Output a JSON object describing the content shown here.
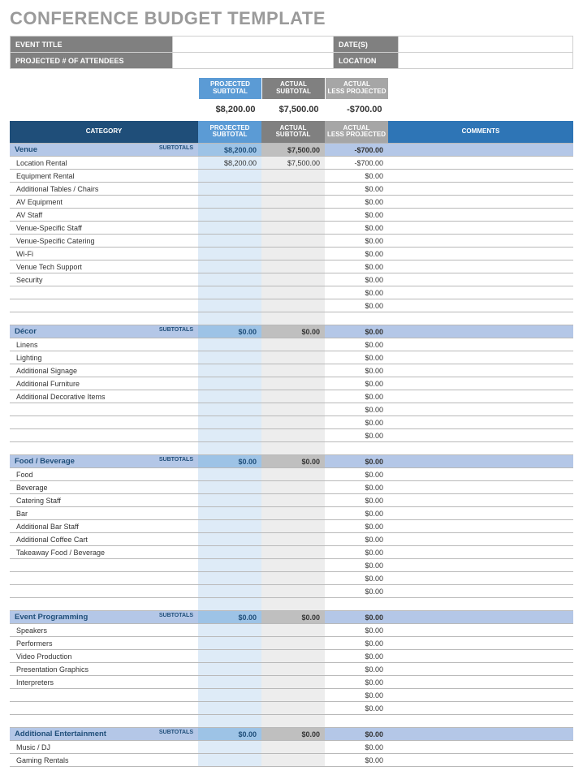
{
  "title": "CONFERENCE BUDGET TEMPLATE",
  "meta": {
    "event_title_label": "EVENT TITLE",
    "dates_label": "DATE(S)",
    "attendees_label": "PROJECTED # OF ATTENDEES",
    "location_label": "LOCATION",
    "event_title_value": "",
    "dates_value": "",
    "attendees_value": "",
    "location_value": ""
  },
  "columns": {
    "category": "CATEGORY",
    "projected": "PROJECTED SUBTOTAL",
    "actual": "ACTUAL SUBTOTAL",
    "diff": "ACTUAL LESS PROJECTED",
    "comments": "COMMENTS",
    "subtotals_tag": "SUBTOTALS"
  },
  "colors": {
    "cat_header_bg": "#1f4e79",
    "col_header_bg": "#2e75b6",
    "proj_hdr_bg": "#5b9bd5",
    "actual_hdr_bg": "#808080",
    "diff_hdr_bg": "#a6a6a6",
    "subtotal_row_bg": "#b4c7e7",
    "subtotal_proj_bg": "#9dc3e6",
    "subtotal_actual_bg": "#bfbfbf",
    "proj_cell_bg": "#deebf7",
    "actual_cell_bg": "#ededed",
    "diff_cell_bg": "#ffffff",
    "row_bg": "#ffffff"
  },
  "layout": {
    "col_cat_w": 232,
    "col_num_w": 78,
    "meta_row1_label1_w": 200,
    "meta_row1_val1_w": 198,
    "meta_row1_label2_w": 80,
    "meta_row1_val2_w": 216,
    "meta_row2_label1_w": 200,
    "meta_row2_val1_w": 198,
    "meta_row2_label2_w": 80,
    "meta_row2_val2_w": 216
  },
  "totals": {
    "projected": "$8,200.00",
    "actual": "$7,500.00",
    "diff": "-$700.00"
  },
  "sections": [
    {
      "name": "Venue",
      "sub_projected": "$8,200.00",
      "sub_actual": "$7,500.00",
      "sub_diff": "-$700.00",
      "items": [
        {
          "label": "Location Rental",
          "projected": "$8,200.00",
          "actual": "$7,500.00",
          "diff": "-$700.00"
        },
        {
          "label": "Equipment Rental",
          "projected": "",
          "actual": "",
          "diff": "$0.00"
        },
        {
          "label": "Additional Tables / Chairs",
          "projected": "",
          "actual": "",
          "diff": "$0.00"
        },
        {
          "label": "AV Equipment",
          "projected": "",
          "actual": "",
          "diff": "$0.00"
        },
        {
          "label": "AV Staff",
          "projected": "",
          "actual": "",
          "diff": "$0.00"
        },
        {
          "label": "Venue-Specific Staff",
          "projected": "",
          "actual": "",
          "diff": "$0.00"
        },
        {
          "label": "Venue-Specific Catering",
          "projected": "",
          "actual": "",
          "diff": "$0.00"
        },
        {
          "label": "Wi-Fi",
          "projected": "",
          "actual": "",
          "diff": "$0.00"
        },
        {
          "label": "Venue Tech Support",
          "projected": "",
          "actual": "",
          "diff": "$0.00"
        },
        {
          "label": "Security",
          "projected": "",
          "actual": "",
          "diff": "$0.00"
        },
        {
          "label": "",
          "projected": "",
          "actual": "",
          "diff": "$0.00"
        },
        {
          "label": "",
          "projected": "",
          "actual": "",
          "diff": "$0.00"
        },
        {
          "label": "",
          "projected": "",
          "actual": "",
          "diff": ""
        }
      ]
    },
    {
      "name": "Décor",
      "sub_projected": "$0.00",
      "sub_actual": "$0.00",
      "sub_diff": "$0.00",
      "items": [
        {
          "label": "Linens",
          "projected": "",
          "actual": "",
          "diff": "$0.00"
        },
        {
          "label": "Lighting",
          "projected": "",
          "actual": "",
          "diff": "$0.00"
        },
        {
          "label": "Additional Signage",
          "projected": "",
          "actual": "",
          "diff": "$0.00"
        },
        {
          "label": "Additional Furniture",
          "projected": "",
          "actual": "",
          "diff": "$0.00"
        },
        {
          "label": "Additional Decorative Items",
          "projected": "",
          "actual": "",
          "diff": "$0.00"
        },
        {
          "label": "",
          "projected": "",
          "actual": "",
          "diff": "$0.00"
        },
        {
          "label": "",
          "projected": "",
          "actual": "",
          "diff": "$0.00"
        },
        {
          "label": "",
          "projected": "",
          "actual": "",
          "diff": "$0.00"
        },
        {
          "label": "",
          "projected": "",
          "actual": "",
          "diff": ""
        }
      ]
    },
    {
      "name": "Food / Beverage",
      "sub_projected": "$0.00",
      "sub_actual": "$0.00",
      "sub_diff": "$0.00",
      "items": [
        {
          "label": "Food",
          "projected": "",
          "actual": "",
          "diff": "$0.00"
        },
        {
          "label": "Beverage",
          "projected": "",
          "actual": "",
          "diff": "$0.00"
        },
        {
          "label": "Catering Staff",
          "projected": "",
          "actual": "",
          "diff": "$0.00"
        },
        {
          "label": "Bar",
          "projected": "",
          "actual": "",
          "diff": "$0.00"
        },
        {
          "label": "Additional Bar Staff",
          "projected": "",
          "actual": "",
          "diff": "$0.00"
        },
        {
          "label": "Additional Coffee Cart",
          "projected": "",
          "actual": "",
          "diff": "$0.00"
        },
        {
          "label": "Takeaway Food / Beverage",
          "projected": "",
          "actual": "",
          "diff": "$0.00"
        },
        {
          "label": "",
          "projected": "",
          "actual": "",
          "diff": "$0.00"
        },
        {
          "label": "",
          "projected": "",
          "actual": "",
          "diff": "$0.00"
        },
        {
          "label": "",
          "projected": "",
          "actual": "",
          "diff": "$0.00"
        },
        {
          "label": "",
          "projected": "",
          "actual": "",
          "diff": ""
        }
      ]
    },
    {
      "name": "Event Programming",
      "sub_projected": "$0.00",
      "sub_actual": "$0.00",
      "sub_diff": "$0.00",
      "items": [
        {
          "label": "Speakers",
          "projected": "",
          "actual": "",
          "diff": "$0.00"
        },
        {
          "label": "Performers",
          "projected": "",
          "actual": "",
          "diff": "$0.00"
        },
        {
          "label": "Video Production",
          "projected": "",
          "actual": "",
          "diff": "$0.00"
        },
        {
          "label": "Presentation Graphics",
          "projected": "",
          "actual": "",
          "diff": "$0.00"
        },
        {
          "label": "Interpreters",
          "projected": "",
          "actual": "",
          "diff": "$0.00"
        },
        {
          "label": "",
          "projected": "",
          "actual": "",
          "diff": "$0.00"
        },
        {
          "label": "",
          "projected": "",
          "actual": "",
          "diff": "$0.00"
        },
        {
          "label": "",
          "projected": "",
          "actual": "",
          "diff": ""
        }
      ]
    },
    {
      "name": "Additional Entertainment",
      "sub_projected": "$0.00",
      "sub_actual": "$0.00",
      "sub_diff": "$0.00",
      "items": [
        {
          "label": "Music / DJ",
          "projected": "",
          "actual": "",
          "diff": "$0.00"
        },
        {
          "label": "Gaming Rentals",
          "projected": "",
          "actual": "",
          "diff": "$0.00"
        }
      ]
    }
  ]
}
